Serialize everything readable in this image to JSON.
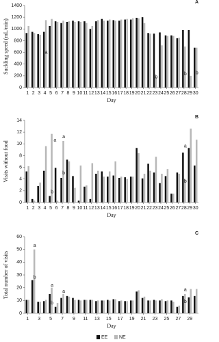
{
  "chart_data": [
    {
      "type": "bar",
      "panel_label": "A",
      "ylabel": "Suckling speed (mL/min)",
      "xlabel": "Day",
      "x": [
        1,
        2,
        3,
        4,
        5,
        6,
        7,
        8,
        9,
        10,
        11,
        12,
        13,
        14,
        15,
        16,
        17,
        18,
        19,
        20,
        21,
        22,
        23,
        24,
        25,
        26,
        27,
        28,
        29,
        30
      ],
      "xlim": [
        0.5,
        30.5
      ],
      "xticks": [
        1,
        2,
        3,
        4,
        5,
        6,
        7,
        8,
        9,
        10,
        11,
        12,
        13,
        14,
        15,
        16,
        17,
        18,
        19,
        20,
        21,
        22,
        23,
        24,
        25,
        26,
        27,
        28,
        29,
        30
      ],
      "ylim": [
        0,
        1400
      ],
      "yticks": [
        0,
        200,
        400,
        600,
        800,
        1000,
        1200,
        1400
      ],
      "series": [
        {
          "name": "EE",
          "color": "#111111",
          "values": [
            930,
            950,
            910,
            950,
            1050,
            1130,
            1100,
            1120,
            1140,
            1130,
            1130,
            1000,
            1130,
            1170,
            1140,
            1150,
            1140,
            1160,
            1160,
            1190,
            1200,
            930,
            920,
            940,
            890,
            890,
            840,
            980,
            980,
            680
          ]
        },
        {
          "name": "NE",
          "color": "#b8b8b8",
          "values": [
            1050,
            930,
            900,
            1150,
            1170,
            1120,
            1140,
            1130,
            1120,
            1120,
            1100,
            1050,
            1150,
            1140,
            1160,
            1140,
            1160,
            1170,
            1180,
            1180,
            1100,
            920,
            180,
            720,
            880,
            880,
            850,
            700,
            200,
            680
          ]
        }
      ],
      "annotations": [
        {
          "text": "a",
          "x": 4,
          "y": 600
        },
        {
          "text": "b",
          "x": 23,
          "y": 180
        },
        {
          "text": "b",
          "x": 28,
          "y": 230
        },
        {
          "text": "b",
          "x": 30,
          "y": 250
        }
      ]
    },
    {
      "type": "bar",
      "panel_label": "B",
      "ylabel": "Visits without food",
      "xlabel": "Day",
      "x": [
        1,
        2,
        3,
        4,
        5,
        6,
        7,
        8,
        9,
        10,
        11,
        12,
        13,
        14,
        15,
        16,
        17,
        18,
        19,
        20,
        21,
        22,
        23,
        24,
        25,
        26,
        27,
        28,
        29,
        30
      ],
      "xlim": [
        0.5,
        30.5
      ],
      "xticks": [
        1,
        2,
        3,
        4,
        5,
        6,
        7,
        8,
        9,
        10,
        11,
        12,
        13,
        14,
        15,
        16,
        17,
        18,
        19,
        20,
        21,
        22,
        23,
        24,
        25,
        26,
        27,
        28,
        29,
        30
      ],
      "ylim": [
        0,
        14
      ],
      "yticks": [
        0,
        2,
        4,
        6,
        8,
        10,
        12,
        14
      ],
      "series": [
        {
          "name": "EE",
          "color": "#111111",
          "values": [
            5.3,
            0.6,
            2.8,
            5.4,
            1.1,
            5.9,
            4.2,
            7.3,
            4.5,
            0.3,
            2.7,
            0.6,
            4.9,
            5.3,
            4.4,
            4.6,
            4.2,
            4.3,
            4.4,
            9.3,
            4.1,
            6.6,
            5.1,
            3.3,
            4.5,
            1.5,
            5.1,
            8.5,
            9.3,
            6.3
          ]
        },
        {
          "name": "NE",
          "color": "#b8b8b8",
          "values": [
            6.2,
            0.3,
            3.4,
            9.6,
            11.7,
            0.3,
            10.5,
            7.0,
            2.5,
            6.3,
            2.9,
            6.7,
            5.4,
            4.4,
            5.3,
            7.0,
            4.4,
            4.0,
            4.4,
            8.4,
            4.9,
            5.4,
            7.8,
            4.9,
            5.7,
            1.5,
            4.9,
            4.0,
            12.6,
            10.7
          ]
        }
      ],
      "annotations": [
        {
          "text": "a",
          "x": 5.5,
          "y": 10.6
        },
        {
          "text": "b",
          "x": 5,
          "y": 1.8
        },
        {
          "text": "a",
          "x": 7,
          "y": 11.2
        },
        {
          "text": "b",
          "x": 7,
          "y": 5.0
        },
        {
          "text": "a",
          "x": 28,
          "y": 9.6
        },
        {
          "text": "b",
          "x": 28,
          "y": 3.6
        }
      ]
    },
    {
      "type": "bar",
      "panel_label": "C",
      "ylabel": "Total number of visits",
      "xlabel": "Day",
      "x": [
        1,
        2,
        3,
        4,
        5,
        6,
        7,
        8,
        9,
        10,
        11,
        12,
        13,
        14,
        15,
        16,
        17,
        18,
        19,
        20,
        21,
        22,
        23,
        24,
        25,
        26,
        27,
        28,
        29,
        30
      ],
      "xlim": [
        0.5,
        30.5
      ],
      "xticks": [
        1,
        3,
        5,
        7,
        9,
        11,
        13,
        15,
        17,
        19,
        21,
        23,
        25,
        27,
        29
      ],
      "ylim": [
        0,
        60
      ],
      "yticks": [
        0,
        10,
        20,
        30,
        40,
        50,
        60
      ],
      "series": [
        {
          "name": "EE",
          "color": "#111111",
          "values": [
            10.5,
            26,
            9,
            9.5,
            15,
            5,
            12,
            13.5,
            12,
            10.5,
            10.5,
            10.5,
            9.5,
            10,
            10.5,
            11,
            9.5,
            9.5,
            10,
            17,
            12,
            10,
            10.5,
            10,
            9.5,
            10,
            5,
            13.5,
            12.5,
            13.5
          ]
        },
        {
          "name": "NE",
          "color": "#b8b8b8",
          "values": [
            10.5,
            50,
            9,
            10.5,
            20,
            8,
            15,
            13,
            10.5,
            10,
            10.5,
            10.5,
            10,
            10,
            10,
            11,
            10,
            9.5,
            10,
            18,
            13,
            10,
            10,
            11,
            10,
            9,
            6,
            15,
            19,
            19
          ]
        }
      ],
      "annotations": [
        {
          "text": "b",
          "x": 2,
          "y": 28
        },
        {
          "text": "a",
          "x": 2,
          "y": 53
        },
        {
          "text": "a",
          "x": 5,
          "y": 22
        },
        {
          "text": "b",
          "x": 5,
          "y": 8
        },
        {
          "text": "a",
          "x": 7,
          "y": 17
        },
        {
          "text": "a",
          "x": 28,
          "y": 18.5
        },
        {
          "text": "b",
          "x": 28,
          "y": 9
        }
      ],
      "legend": "bottom"
    }
  ]
}
